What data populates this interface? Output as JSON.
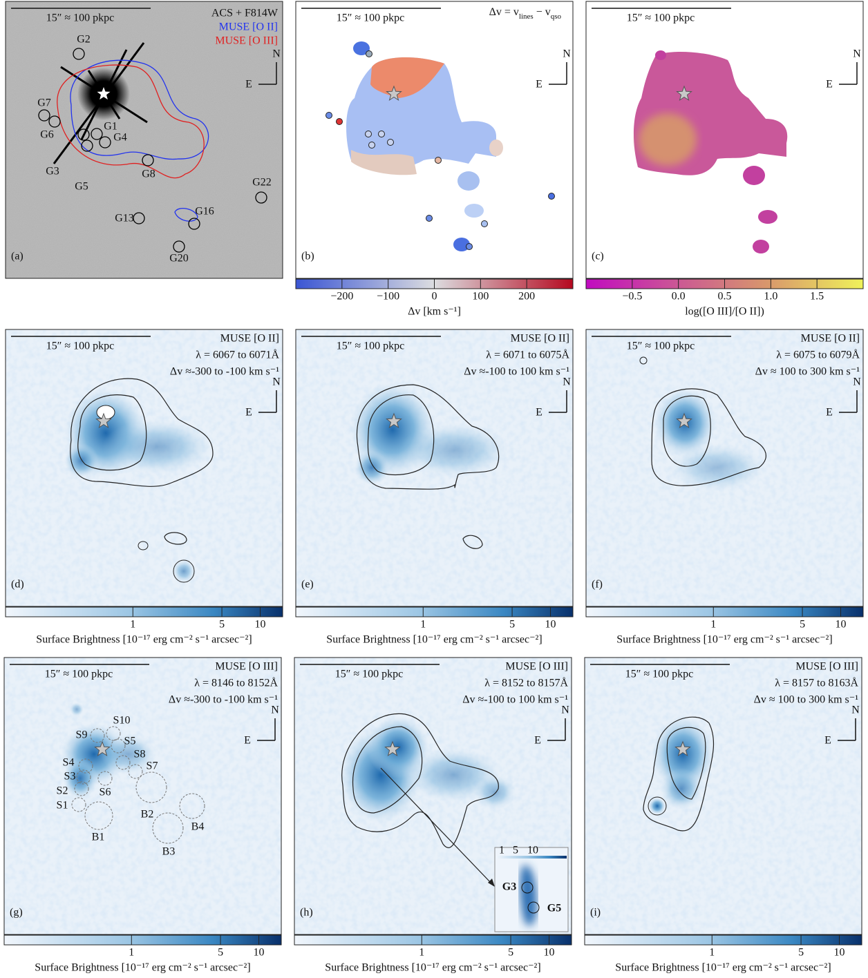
{
  "panels": [
    {
      "label": "(a)",
      "scale_bar": "15″ ≈ 100 pkpc",
      "legend": [
        "ACS + F814W",
        "MUSE [O II]",
        "MUSE [O III]"
      ],
      "compass": [
        "N",
        "E"
      ],
      "galaxies": [
        "G2",
        "G7",
        "G6",
        "G1",
        "G4",
        "G3",
        "G5",
        "G8",
        "G22",
        "G13",
        "G16",
        "G20"
      ]
    },
    {
      "label": "(b)",
      "scale_bar": "15″ ≈ 100 pkpc",
      "equation": [
        "Δv = v",
        "lines",
        " − v",
        "qso"
      ],
      "compass": [
        "N",
        "E"
      ],
      "colorbar": {
        "label": "Δv [km s⁻¹]",
        "lim": [
          -300,
          300
        ],
        "ticks": [
          {
            "value": -200,
            "label": "−200"
          },
          {
            "value": -100,
            "label": "−100"
          },
          0,
          100,
          200
        ]
      }
    },
    {
      "label": "(c)",
      "scale_bar": "15″ ≈ 100 pkpc",
      "compass": [
        "N",
        "E"
      ],
      "colorbar": {
        "label": "log([O III]/[O II])",
        "lim": [
          -1,
          2
        ],
        "ticks": [
          {
            "value": -0.5,
            "label": "−0.5"
          },
          {
            "value": 0,
            "label": "0.0"
          },
          0.5,
          {
            "value": 1,
            "label": "1.0"
          },
          1.5
        ]
      }
    },
    {
      "label": "(d)",
      "scale_bar": "15″ ≈ 100 pkpc",
      "lines": [
        "MUSE [O II]",
        "λ = 6067 to 6071Å",
        "Δv ≈-300 to -100 km s⁻¹"
      ],
      "compass": [
        "N",
        "E"
      ],
      "colorbar": {
        "label": "Surface Brightness [10⁻¹⁷ erg cm⁻² s⁻¹ arcsec⁻²]",
        "log": true,
        "lim": [
          0.1,
          15
        ],
        "ticks": [
          1,
          5,
          10
        ]
      }
    },
    {
      "label": "(e)",
      "scale_bar": "15″ ≈ 100 pkpc",
      "lines": [
        "MUSE [O II]",
        "λ = 6071 to 6075Å",
        "Δv ≈-100 to 100 km s⁻¹"
      ],
      "compass": [
        "N",
        "E"
      ],
      "colorbar": {
        "label": "Surface Brightness [10⁻¹⁷ erg cm⁻² s⁻¹ arcsec⁻²]",
        "log": true,
        "lim": [
          0.1,
          15
        ],
        "ticks": [
          1,
          5,
          10
        ]
      }
    },
    {
      "label": "(f)",
      "scale_bar": "15″ ≈ 100 pkpc",
      "lines": [
        "MUSE [O II]",
        "λ = 6075 to 6079Å",
        "Δv ≈ 100 to 300 km s⁻¹"
      ],
      "compass": [
        "N",
        "E"
      ],
      "colorbar": {
        "label": "Surface Brightness [10⁻¹⁷ erg cm⁻² s⁻¹ arcsec⁻²]",
        "log": true,
        "lim": [
          0.1,
          15
        ],
        "ticks": [
          1,
          5,
          10
        ]
      }
    },
    {
      "label": "(g)",
      "scale_bar": "15″ ≈ 100 pkpc",
      "lines": [
        "MUSE [O III]",
        "λ = 8146 to 8152Å",
        "Δv ≈-300 to -100 km s⁻¹"
      ],
      "compass": [
        "N",
        "E"
      ],
      "apertures": [
        "S10",
        "S9",
        "S5",
        "S8",
        "S4",
        "S7",
        "S3",
        "S6",
        "S2",
        "S1",
        "B2",
        "B4",
        "B1",
        "B3"
      ],
      "colorbar": {
        "label": "Surface Brightness [10⁻¹⁷ erg cm⁻² s⁻¹ arcsec⁻²]",
        "log": true,
        "lim": [
          0.1,
          15
        ],
        "ticks": [
          1,
          5,
          10
        ]
      }
    },
    {
      "label": "(h)",
      "scale_bar": "15″ ≈ 100 pkpc",
      "lines": [
        "MUSE [O III]",
        "λ = 8152 to 8157Å",
        "Δv ≈-100 to 100 km s⁻¹"
      ],
      "compass": [
        "N",
        "E"
      ],
      "inset": {
        "ticks": [
          1,
          5,
          10
        ],
        "labels": [
          "G3",
          "G5"
        ]
      },
      "colorbar": {
        "label": "Surface Brightness [10⁻¹⁷ erg cm⁻² s⁻¹ arcsec⁻²]",
        "log": true,
        "lim": [
          0.1,
          15
        ],
        "ticks": [
          1,
          5,
          10
        ]
      }
    },
    {
      "label": "(i)",
      "scale_bar": "15″ ≈ 100 pkpc",
      "lines": [
        "MUSE [O III]",
        "λ = 8157 to 8163Å",
        "Δv ≈ 100 to 300 km s⁻¹"
      ],
      "compass": [
        "N",
        "E"
      ],
      "colorbar": {
        "label": "Surface Brightness [10⁻¹⁷ erg cm⁻² s⁻¹ arcsec⁻²]",
        "log": true,
        "lim": [
          0.1,
          15
        ],
        "ticks": [
          1,
          5,
          10
        ]
      }
    }
  ]
}
